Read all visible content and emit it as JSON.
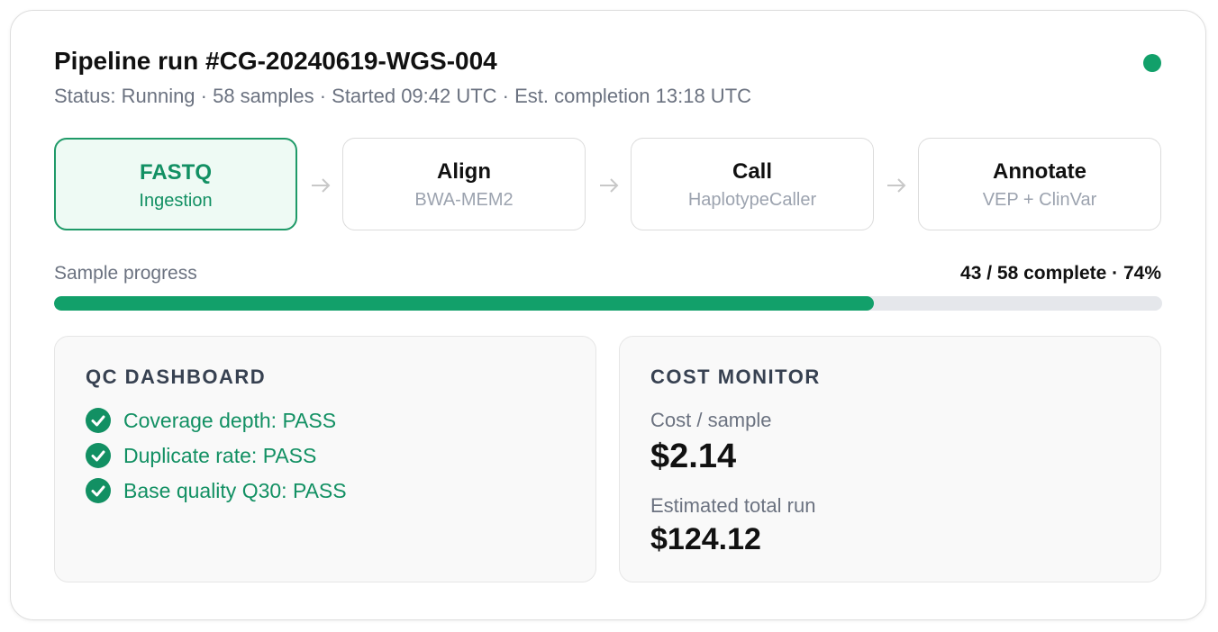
{
  "header": {
    "title": "Pipeline run #CG-20240619-WGS-004",
    "subtitle": "Status: Running · 58 samples · Started 09:42 UTC · Est. completion 13:18 UTC"
  },
  "stages": [
    {
      "name": "FASTQ",
      "tool": "Ingestion"
    },
    {
      "name": "Align",
      "tool": "BWA-MEM2"
    },
    {
      "name": "Call",
      "tool": "HaplotypeCaller"
    },
    {
      "name": "Annotate",
      "tool": "VEP + ClinVar"
    }
  ],
  "progress": {
    "label": "Sample progress",
    "status": "43 / 58 complete · 74%",
    "percent": 74
  },
  "qc": {
    "title": "QC DASHBOARD",
    "items": [
      "Coverage depth: PASS",
      "Duplicate rate: PASS",
      "Base quality Q30: PASS"
    ]
  },
  "cost": {
    "title": "COST MONITOR",
    "per_sample_label": "Cost / sample",
    "per_sample": "$2.14",
    "total_label": "Estimated total run",
    "total": "$124.12"
  }
}
